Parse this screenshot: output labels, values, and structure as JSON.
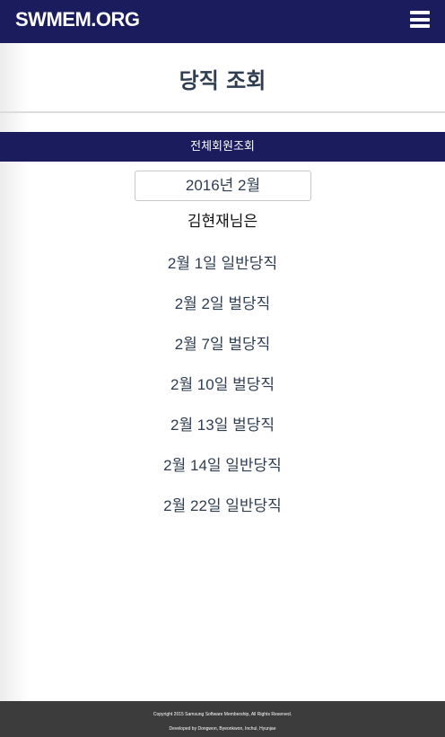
{
  "navbar": {
    "brand": "SWMEM.ORG",
    "menu_icon": "hamburger-menu-icon"
  },
  "page": {
    "title": "당직 조회"
  },
  "subnav": {
    "all_members_link": "전체회원조회"
  },
  "duty": {
    "selected_month": "2016년 2월",
    "user_line": "김현재님은",
    "entries": [
      "2월 1일 일반당직",
      "2월 2일 벌당직",
      "2월 7일 벌당직",
      "2월 10일 벌당직",
      "2월 13일 벌당직",
      "2월 14일 일반당직",
      "2월 22일 일반당직"
    ]
  },
  "footer": {
    "copyright": "Copyright 2015 Samsung Software Membership, All Rights Reserved.",
    "developers": "Developed by Dongwon, Byeonkwon, Inchul, Hyunjae"
  },
  "colors": {
    "navbar_bg": "#1b1c5e",
    "title_text": "#2e3d52",
    "footer_bg": "#3c3c3c"
  }
}
